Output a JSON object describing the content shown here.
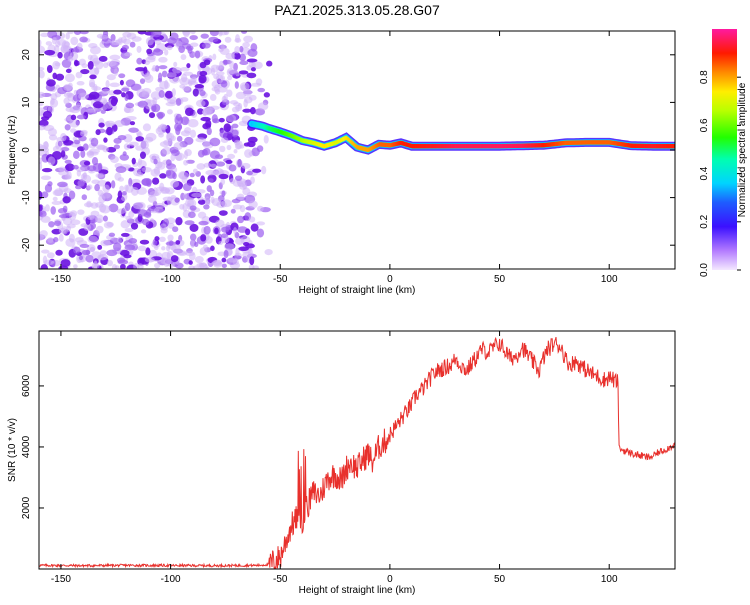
{
  "title": "PAZ1.2025.313.05.28.G07",
  "colors": {
    "axis": "#000000",
    "snr_line": "#e8302c",
    "spec_dots": "#7a1be6",
    "background": "#ffffff"
  },
  "chart_data": [
    {
      "type": "heatmap",
      "name": "spectrogram",
      "xlabel": "Height of straight line (km)",
      "ylabel": "Frequency (Hz)",
      "xlim": [
        -160,
        130
      ],
      "ylim": [
        -25,
        25
      ],
      "xticks": [
        -150,
        -100,
        -50,
        0,
        50,
        100
      ],
      "yticks": [
        -20,
        -10,
        0,
        10,
        20
      ],
      "colorbar": {
        "label": "Normalized spectral amplitude",
        "range": [
          0,
          1
        ],
        "ticks": [
          "0.0",
          "0.2",
          "0.4",
          "0.6",
          "0.8"
        ],
        "colormap": "gist_ncar_like"
      },
      "noise_region_x": [
        -160,
        -55
      ],
      "ridge": {
        "x": [
          -63,
          -58,
          -55,
          -50,
          -45,
          -40,
          -35,
          -30,
          -25,
          -20,
          -15,
          -10,
          -5,
          0,
          5,
          10,
          20,
          30,
          40,
          50,
          60,
          70,
          80,
          90,
          100,
          110,
          120,
          130
        ],
        "freq": [
          5.5,
          5.0,
          4.5,
          3.8,
          3.0,
          2.0,
          1.5,
          0.8,
          1.5,
          2.6,
          0.6,
          0.0,
          1.2,
          1.0,
          1.5,
          0.8,
          0.8,
          0.8,
          0.8,
          0.8,
          0.9,
          1.0,
          1.5,
          1.6,
          1.6,
          0.9,
          0.8,
          0.8
        ],
        "amplitude": [
          0.35,
          0.45,
          0.5,
          0.55,
          0.6,
          0.65,
          0.7,
          0.75,
          0.7,
          0.75,
          0.8,
          0.8,
          0.85,
          0.85,
          0.9,
          0.9,
          0.92,
          0.95,
          0.95,
          0.96,
          0.95,
          0.9,
          0.85,
          0.85,
          0.85,
          0.9,
          0.92,
          0.9
        ]
      }
    },
    {
      "type": "line",
      "name": "snr",
      "xlabel": "Height of straight line (km)",
      "ylabel": "SNR (10 * v/v)",
      "xlim": [
        -160,
        130
      ],
      "ylim": [
        0,
        7800
      ],
      "xticks": [
        -150,
        -100,
        -50,
        0,
        50,
        100
      ],
      "yticks": [
        2000,
        4000,
        6000
      ],
      "x": [
        -160,
        -140,
        -120,
        -100,
        -80,
        -60,
        -55,
        -50,
        -48,
        -45,
        -42,
        -40,
        -38,
        -35,
        -32,
        -30,
        -28,
        -25,
        -22,
        -20,
        -18,
        -15,
        -12,
        -10,
        -8,
        -5,
        -2,
        0,
        2,
        5,
        8,
        10,
        12,
        15,
        18,
        20,
        22,
        25,
        28,
        30,
        32,
        35,
        38,
        40,
        42,
        45,
        48,
        50,
        52,
        55,
        58,
        60,
        62,
        65,
        68,
        70,
        72,
        75,
        78,
        80,
        82,
        85,
        88,
        90,
        92,
        95,
        98,
        100,
        102,
        104,
        104.5,
        106,
        108,
        110,
        112,
        115,
        118,
        120,
        122,
        125,
        128,
        130
      ],
      "y": [
        120,
        110,
        120,
        115,
        110,
        120,
        150,
        400,
        800,
        1400,
        1700,
        1600,
        2000,
        2500,
        2400,
        2700,
        3000,
        3100,
        2900,
        3300,
        3500,
        3300,
        3600,
        3800,
        3500,
        4000,
        4200,
        4400,
        4600,
        4900,
        5200,
        5400,
        5700,
        5900,
        6200,
        6400,
        6500,
        6600,
        6700,
        6900,
        6700,
        6500,
        6800,
        7000,
        7200,
        7100,
        7300,
        7400,
        7200,
        6900,
        7000,
        7300,
        7100,
        6800,
        6500,
        6900,
        7200,
        7400,
        7300,
        6900,
        6700,
        6800,
        6600,
        6500,
        6400,
        6300,
        6200,
        6300,
        6200,
        6100,
        3950,
        3900,
        3850,
        3800,
        3750,
        3700,
        3650,
        3700,
        3800,
        3900,
        4000,
        4100
      ]
    }
  ]
}
